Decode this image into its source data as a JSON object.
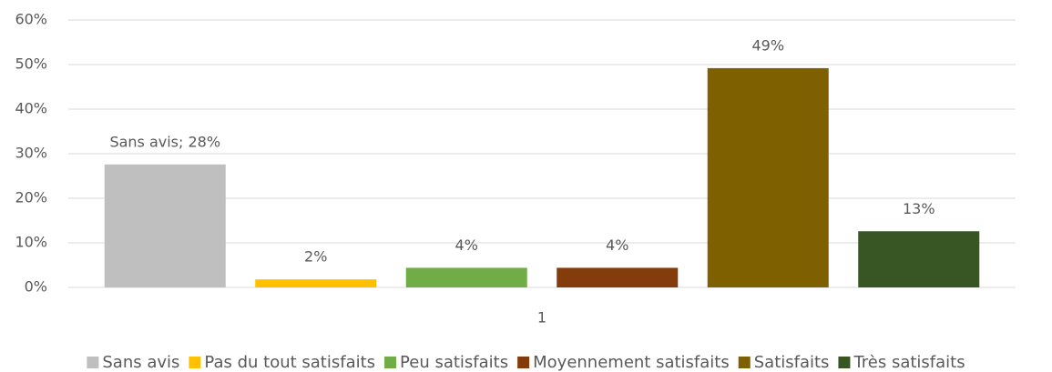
{
  "chart_data": {
    "type": "bar",
    "categories": [
      "1"
    ],
    "series": [
      {
        "name": "Sans avis",
        "color": "#bfbfbf",
        "values": [
          27.6
        ],
        "value_labels": [
          "Sans avis; 28%"
        ]
      },
      {
        "name": "Pas du tout satisfaits",
        "color": "#ffc000",
        "values": [
          1.8
        ],
        "value_labels": [
          "2%"
        ]
      },
      {
        "name": "Peu satisfaits",
        "color": "#70ad47",
        "values": [
          4.4
        ],
        "value_labels": [
          "4%"
        ]
      },
      {
        "name": "Moyennement satisfaits",
        "color": "#843c0c",
        "values": [
          4.4
        ],
        "value_labels": [
          "4%"
        ]
      },
      {
        "name": "Satisfaits",
        "color": "#7f6000",
        "values": [
          49.2
        ],
        "value_labels": [
          "49%"
        ]
      },
      {
        "name": "Très satisfaits",
        "color": "#375623",
        "values": [
          12.6
        ],
        "value_labels": [
          "13%"
        ]
      }
    ],
    "ylim": [
      0,
      60
    ],
    "yticks": [
      {
        "value": 0,
        "label": "0%"
      },
      {
        "value": 10,
        "label": "10%"
      },
      {
        "value": 20,
        "label": "20%"
      },
      {
        "value": 30,
        "label": "30%"
      },
      {
        "value": 40,
        "label": "40%"
      },
      {
        "value": 50,
        "label": "50%"
      },
      {
        "value": 60,
        "label": "60%"
      }
    ],
    "grid": true,
    "legend": "bottom"
  }
}
